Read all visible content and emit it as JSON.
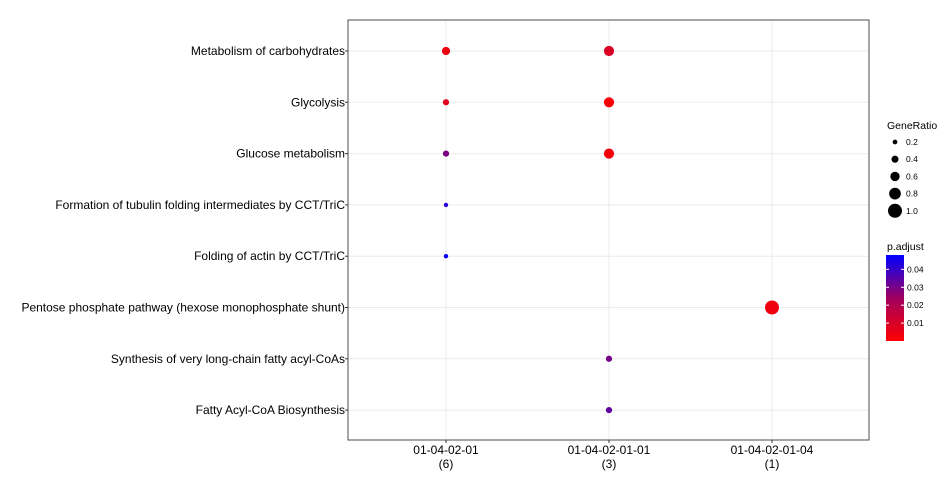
{
  "chart_data": {
    "type": "scatter",
    "categories_x": [
      {
        "label": "01-04-02-01",
        "count": "(6)"
      },
      {
        "label": "01-04-02-01-01",
        "count": "(3)"
      },
      {
        "label": "01-04-02-01-04",
        "count": "(1)"
      }
    ],
    "categories_y": [
      "Metabolism of carbohydrates",
      "Glycolysis",
      "Glucose metabolism",
      "Formation of tubulin folding intermediates by CCT/TriC",
      "Folding of actin by CCT/TriC",
      "Pentose phosphate pathway (hexose monophosphate shunt)",
      "Synthesis of very long-chain fatty acyl-CoAs",
      "Fatty Acyl-CoA Biosynthesis"
    ],
    "points": [
      {
        "x": "01-04-02-01",
        "y": "Metabolism of carbohydrates",
        "gene_ratio": 0.5,
        "p_adjust": 0.003
      },
      {
        "x": "01-04-02-01",
        "y": "Glycolysis",
        "gene_ratio": 0.33,
        "p_adjust": 0.006
      },
      {
        "x": "01-04-02-01",
        "y": "Glucose metabolism",
        "gene_ratio": 0.33,
        "p_adjust": 0.025
      },
      {
        "x": "01-04-02-01",
        "y": "Formation of tubulin folding intermediates by CCT/TriC",
        "gene_ratio": 0.17,
        "p_adjust": 0.04
      },
      {
        "x": "01-04-02-01",
        "y": "Folding of actin by CCT/TriC",
        "gene_ratio": 0.17,
        "p_adjust": 0.046
      },
      {
        "x": "01-04-02-01-01",
        "y": "Metabolism of carbohydrates",
        "gene_ratio": 0.67,
        "p_adjust": 0.007
      },
      {
        "x": "01-04-02-01-01",
        "y": "Glycolysis",
        "gene_ratio": 0.67,
        "p_adjust": 0.001
      },
      {
        "x": "01-04-02-01-01",
        "y": "Glucose metabolism",
        "gene_ratio": 0.67,
        "p_adjust": 0.002
      },
      {
        "x": "01-04-02-01-01",
        "y": "Synthesis of very long-chain fatty acyl-CoAs",
        "gene_ratio": 0.33,
        "p_adjust": 0.026
      },
      {
        "x": "01-04-02-01-01",
        "y": "Fatty Acyl-CoA Biosynthesis",
        "gene_ratio": 0.33,
        "p_adjust": 0.03
      },
      {
        "x": "01-04-02-01-04",
        "y": "Pentose phosphate pathway (hexose monophosphate shunt)",
        "gene_ratio": 1.0,
        "p_adjust": 0.003
      }
    ],
    "size_legend": {
      "title": "GeneRatio",
      "values": [
        0.2,
        0.4,
        0.6,
        0.8,
        1.0
      ],
      "labels": [
        "0.2",
        "0.4",
        "0.6",
        "0.8",
        "1.0"
      ]
    },
    "color_legend": {
      "title": "p.adjust",
      "range": [
        0.0,
        0.048
      ],
      "ticks": [
        0.01,
        0.02,
        0.03,
        0.04
      ],
      "labels": [
        "0.01",
        "0.02",
        "0.03",
        "0.04"
      ],
      "low_color": "#ff0000",
      "high_color": "#0000ff"
    },
    "grid": true,
    "legend_position": "right",
    "title": "",
    "xlabel": "",
    "ylabel": ""
  }
}
